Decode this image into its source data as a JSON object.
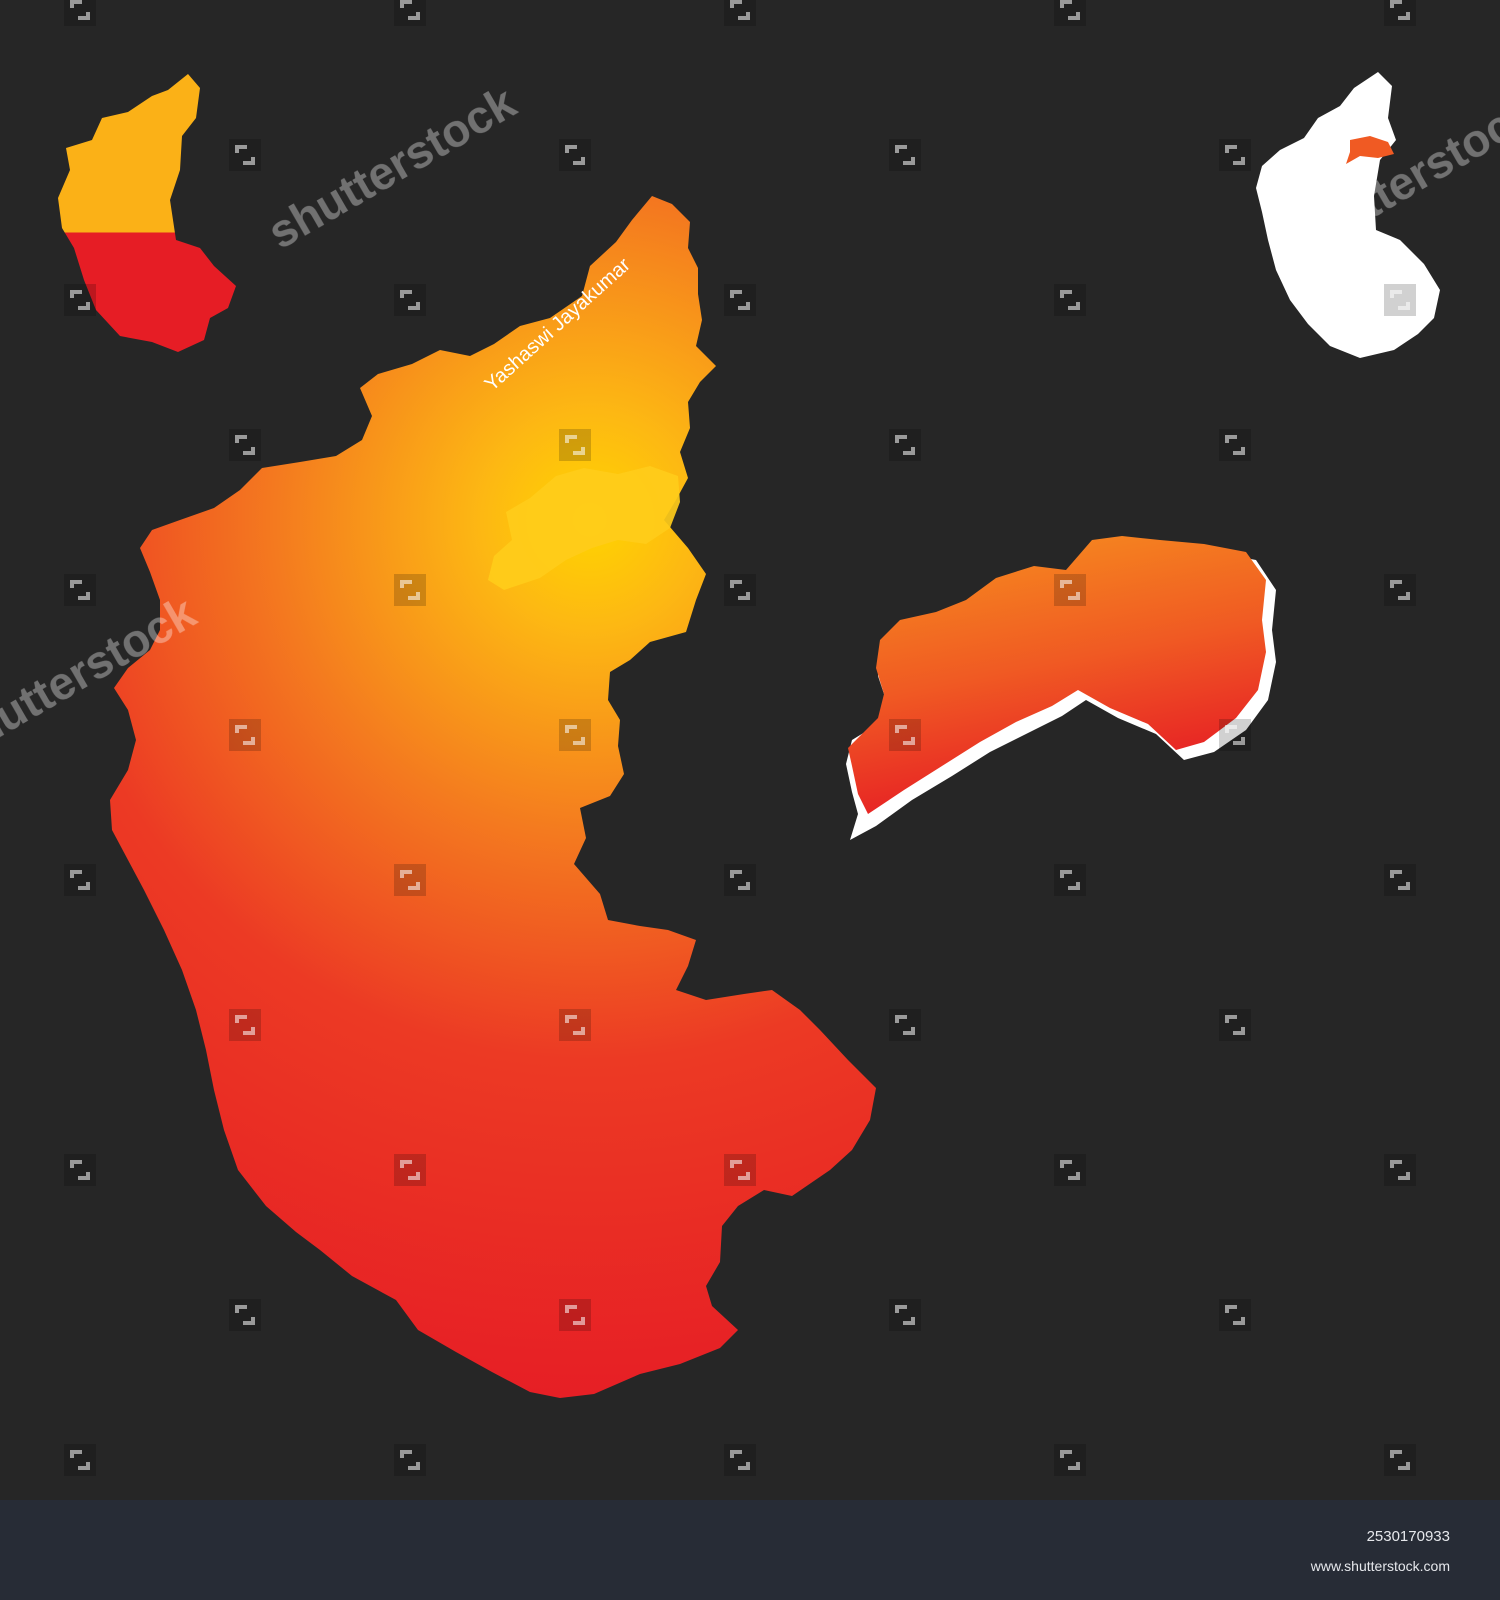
{
  "map": {
    "colors": {
      "background": "#262626",
      "yellow": "#fdb813",
      "orange": "#f7931e",
      "red": "#e8202a",
      "white": "#ffffff"
    },
    "main_map_label": "Yashaswi Jayakumar",
    "watermark_text": "shutterstock",
    "watermark_logo_icon": "shutterstock-logo-icon"
  },
  "footer": {
    "image_id": "2530170933",
    "site": "www.shutterstock.com"
  }
}
